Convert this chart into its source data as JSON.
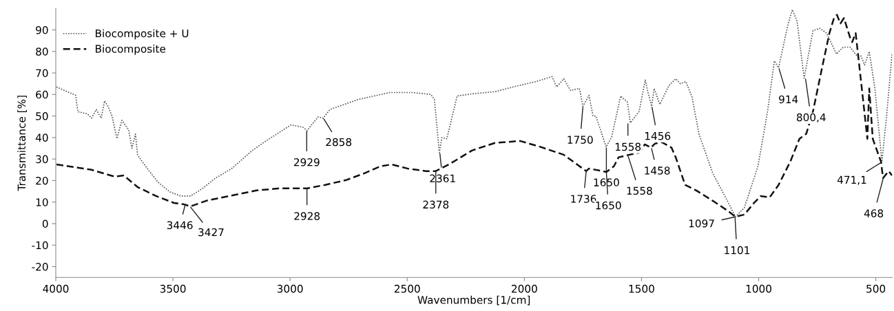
{
  "chart_data": {
    "type": "line",
    "xlabel": "Wavenumbers [1/cm]",
    "ylabel": "Transmittance [%]",
    "xlim": [
      4000,
      430
    ],
    "xticks": [
      4000,
      3500,
      3000,
      2500,
      2000,
      1500,
      1000,
      500
    ],
    "ylim": [
      -25,
      100
    ],
    "yticks": [
      -20,
      -10,
      0,
      10,
      20,
      30,
      40,
      50,
      60,
      70,
      80,
      90
    ],
    "grid": false,
    "legend": "top left",
    "series": [
      {
        "name": "Biocomposite + U",
        "color": "#555555",
        "line_style": "dotted",
        "x": [
          3997,
          3944,
          3915,
          3906,
          3865,
          3847,
          3827,
          3806,
          3792,
          3777,
          3760,
          3739,
          3718,
          3689,
          3675,
          3660,
          3651,
          3631,
          3601,
          3563,
          3513,
          3466,
          3425,
          3378,
          3320,
          3249,
          3161,
          3103,
          2997,
          2947,
          2927,
          2909,
          2880,
          2859,
          2830,
          2712,
          2575,
          2478,
          2399,
          2384,
          2363,
          2352,
          2331,
          2287,
          2223,
          2126,
          2029,
          1950,
          1882,
          1862,
          1832,
          1803,
          1765,
          1750,
          1724,
          1707,
          1695,
          1677,
          1651,
          1627,
          1589,
          1560,
          1548,
          1510,
          1484,
          1472,
          1457,
          1446,
          1422,
          1384,
          1354,
          1334,
          1311,
          1284,
          1255,
          1196,
          1138,
          1099,
          1061,
          1003,
          962,
          933,
          915,
          874,
          856,
          836,
          806,
          768,
          739,
          710,
          668,
          639,
          610,
          580,
          563,
          548,
          528,
          504,
          474,
          454,
          431
        ],
        "values": [
          63.5,
          61,
          59.6,
          52,
          51,
          49,
          53,
          49,
          57,
          54.5,
          50,
          39.5,
          48,
          43.6,
          35,
          41.6,
          32,
          28.8,
          24.4,
          19.2,
          14.7,
          12.8,
          12.8,
          16,
          21,
          25.6,
          34,
          38.4,
          45.8,
          44.9,
          43.2,
          45.8,
          49.6,
          49,
          53,
          57.6,
          60.9,
          60.9,
          60,
          57.7,
          33,
          40,
          39.4,
          59.3,
          60.3,
          61.3,
          64,
          66,
          68.3,
          63.5,
          67.3,
          61.9,
          62.8,
          54.5,
          59.6,
          50,
          50,
          44.2,
          35.6,
          40.4,
          59.3,
          56.4,
          46.8,
          52.2,
          66.7,
          60.9,
          54.5,
          62.8,
          55.4,
          64,
          67.3,
          65,
          66,
          58.7,
          41.7,
          23.4,
          11.5,
          3.2,
          7.4,
          26.6,
          52.2,
          75.6,
          72.4,
          93,
          99.4,
          94,
          67.6,
          89.7,
          90.7,
          88.5,
          78.8,
          82,
          82,
          77.9,
          77.9,
          73.7,
          80,
          62.8,
          28.8,
          50,
          78.8
        ]
      },
      {
        "name": "Biocomposite",
        "color": "#111111",
        "line_style": "dashed",
        "x": [
          3997,
          3847,
          3748,
          3710,
          3651,
          3572,
          3495,
          3455,
          3425,
          3358,
          3261,
          3144,
          3045,
          2927,
          2850,
          2762,
          2683,
          2616,
          2566,
          2499,
          2419,
          2378,
          2322,
          2223,
          2126,
          2018,
          1930,
          1832,
          1736,
          1724,
          1650,
          1618,
          1598,
          1563,
          1510,
          1486,
          1460,
          1442,
          1413,
          1372,
          1354,
          1314,
          1266,
          1196,
          1138,
          1099,
          1061,
          1020,
          991,
          953,
          915,
          865,
          826,
          797,
          768,
          727,
          698,
          680,
          666,
          651,
          636,
          610,
          601,
          586,
          563,
          536,
          528,
          513,
          478,
          469,
          445,
          431
        ],
        "values": [
          27.5,
          25,
          21.8,
          22.4,
          17,
          12.8,
          9.6,
          9,
          8,
          10.6,
          12.8,
          15.4,
          16.4,
          16.4,
          18,
          20.2,
          23.4,
          26.6,
          27.5,
          25.6,
          24.4,
          24.4,
          27.5,
          34,
          37.5,
          38.4,
          35.6,
          32,
          24.4,
          25.6,
          24,
          26.6,
          30.8,
          31.7,
          33,
          36.8,
          35.3,
          37.2,
          37.8,
          35.3,
          30.8,
          18,
          15.4,
          10.6,
          6.4,
          3.2,
          4.2,
          9.6,
          12.8,
          12.2,
          18,
          28.8,
          39.4,
          41.7,
          52.2,
          73.7,
          88.5,
          95,
          97,
          93,
          95.5,
          86.5,
          84.3,
          88.5,
          66,
          39.4,
          62.8,
          39.4,
          28.8,
          21.2,
          24.4,
          22.4
        ]
      }
    ],
    "annotations": [
      {
        "text": "3446",
        "x": 3446,
        "y": 9.5
      },
      {
        "text": "3427",
        "x": 3427,
        "y": 8
      },
      {
        "text": "2929",
        "x": 2929,
        "y": 43.2
      },
      {
        "text": "2858",
        "x": 2858,
        "y": 49
      },
      {
        "text": "2928",
        "x": 2928,
        "y": 16.4
      },
      {
        "text": "2361",
        "x": 2361,
        "y": 33
      },
      {
        "text": "2378",
        "x": 2378,
        "y": 24.4
      },
      {
        "text": "1750",
        "x": 1750,
        "y": 54.5
      },
      {
        "text": "1736",
        "x": 1736,
        "y": 24.4
      },
      {
        "text": "1650",
        "x": 1650,
        "y": 35.6
      },
      {
        "text": "1650",
        "x": 1650,
        "y": 24
      },
      {
        "text": "1558",
        "x": 1558,
        "y": 46.8
      },
      {
        "text": "1558",
        "x": 1558,
        "y": 31.7
      },
      {
        "text": "1456",
        "x": 1456,
        "y": 54.5
      },
      {
        "text": "1458",
        "x": 1458,
        "y": 35.3
      },
      {
        "text": "1097",
        "x": 1097,
        "y": 3.2
      },
      {
        "text": "1101",
        "x": 1101,
        "y": 3.2
      },
      {
        "text": "914",
        "x": 914,
        "y": 72.4
      },
      {
        "text": "800,4",
        "x": 800.4,
        "y": 67.6
      },
      {
        "text": "471,1",
        "x": 471.1,
        "y": 28.8
      },
      {
        "text": "468",
        "x": 468,
        "y": 21.2
      }
    ]
  }
}
